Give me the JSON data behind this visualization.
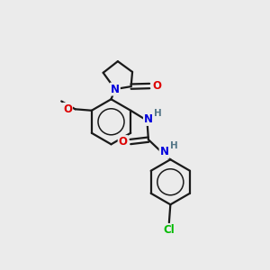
{
  "background_color": "#ebebeb",
  "bond_color": "#1a1a1a",
  "atom_colors": {
    "N": "#0000dd",
    "O": "#dd0000",
    "Cl": "#00bb00",
    "H": "#557788",
    "C": "#1a1a1a"
  },
  "figsize": [
    3.0,
    3.0
  ],
  "dpi": 100
}
